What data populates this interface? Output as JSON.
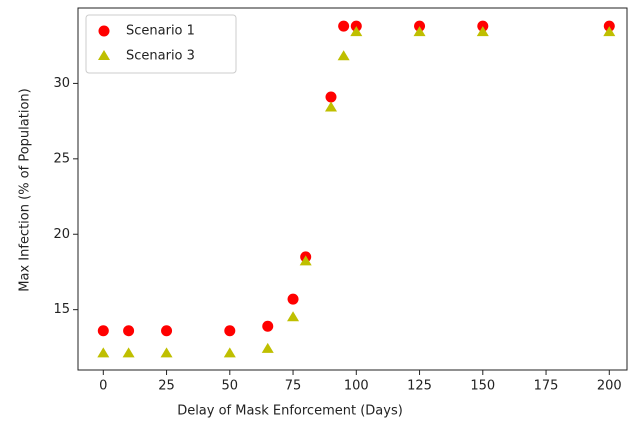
{
  "chart_data": {
    "type": "scatter",
    "xlabel": "Delay of Mask Enforcement (Days)",
    "ylabel": "Max Infection (% of Population)",
    "series": [
      {
        "name": "Scenario 1",
        "color": "#ff0000",
        "marker": "circle",
        "x": [
          0,
          10,
          25,
          50,
          65,
          75,
          80,
          90,
          95,
          100,
          125,
          150,
          200
        ],
        "values": [
          13.6,
          13.6,
          13.6,
          13.6,
          13.9,
          15.7,
          18.5,
          29.1,
          33.8,
          33.8,
          33.8,
          33.8,
          33.8
        ]
      },
      {
        "name": "Scenario 3",
        "color": "#bfbf00",
        "marker": "triangle",
        "x": [
          0,
          10,
          25,
          50,
          65,
          75,
          80,
          90,
          95,
          100,
          125,
          150,
          200
        ],
        "values": [
          12.1,
          12.1,
          12.1,
          12.1,
          12.4,
          14.5,
          18.2,
          28.4,
          31.8,
          33.4,
          33.4,
          33.4,
          33.4
        ]
      }
    ],
    "xlim": [
      -10,
      207
    ],
    "xticks": [
      0,
      25,
      50,
      75,
      100,
      125,
      150,
      175,
      200
    ],
    "ylim": [
      11,
      35
    ],
    "yticks": [
      15,
      20,
      25,
      30
    ],
    "legend": "upper left"
  }
}
